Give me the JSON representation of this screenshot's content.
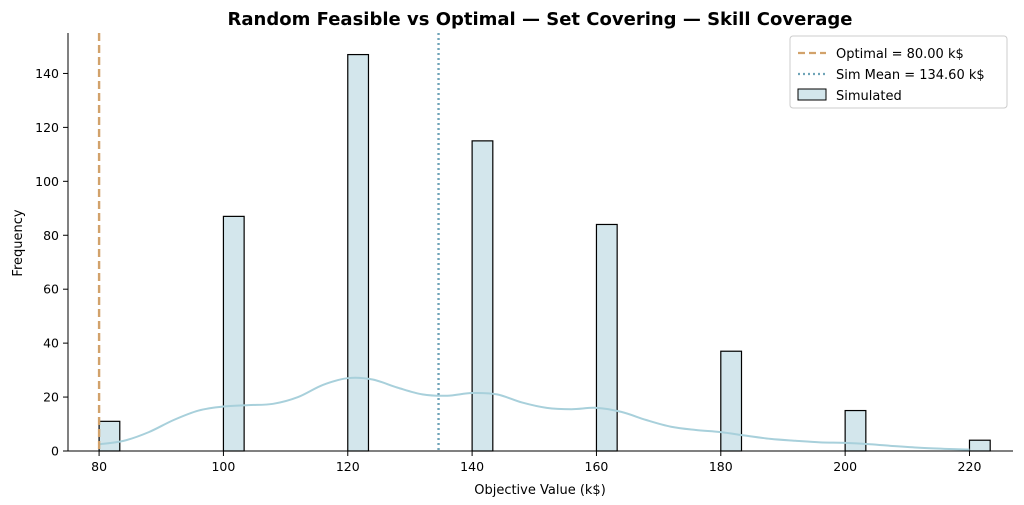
{
  "chart_data": {
    "type": "bar",
    "title": "Random Feasible vs Optimal — Set Covering — Skill Coverage",
    "xlabel": "Objective Value (k$)",
    "ylabel": "Frequency",
    "xlim": [
      75,
      227
    ],
    "ylim": [
      0,
      155
    ],
    "xticks": [
      80,
      100,
      120,
      140,
      160,
      180,
      200,
      220
    ],
    "yticks": [
      0,
      20,
      40,
      60,
      80,
      100,
      120,
      140
    ],
    "bin_width": 3.33,
    "bars": [
      {
        "x": 80,
        "count": 11
      },
      {
        "x": 100,
        "count": 87
      },
      {
        "x": 120,
        "count": 147
      },
      {
        "x": 140,
        "count": 115
      },
      {
        "x": 160,
        "count": 84
      },
      {
        "x": 180,
        "count": 37
      },
      {
        "x": 200,
        "count": 15
      },
      {
        "x": 220,
        "count": 4
      }
    ],
    "kde": {
      "x": [
        80,
        84,
        88,
        92,
        96,
        100,
        104,
        108,
        112,
        116,
        120,
        124,
        128,
        132,
        136,
        140,
        144,
        148,
        152,
        156,
        160,
        164,
        168,
        172,
        176,
        180,
        184,
        188,
        192,
        196,
        200,
        204,
        208,
        212,
        216,
        220
      ],
      "y": [
        2.5,
        3.8,
        7,
        11.5,
        15,
        16.5,
        17,
        17.5,
        20,
        24.5,
        27,
        26.5,
        23.5,
        21,
        20.5,
        21.5,
        21,
        18,
        16,
        15.5,
        16,
        14.5,
        11.5,
        9,
        7.8,
        7,
        5.7,
        4.5,
        3.8,
        3.2,
        3,
        2.5,
        1.8,
        1.2,
        0.8,
        0.5
      ]
    },
    "reference_lines": [
      {
        "label": "Optimal = 80.00 k$",
        "x": 80,
        "style": "dashed",
        "color": "#d2a26b"
      },
      {
        "label": "Sim Mean = 134.60 k$",
        "x": 134.6,
        "style": "dotted",
        "color": "#6fa4b8"
      }
    ],
    "series_label": "Simulated",
    "bar_color": "#d3e6ec",
    "bar_edge_color": "#000000",
    "kde_color": "#a8d0db",
    "legend_position": "top-right",
    "grid": false
  }
}
